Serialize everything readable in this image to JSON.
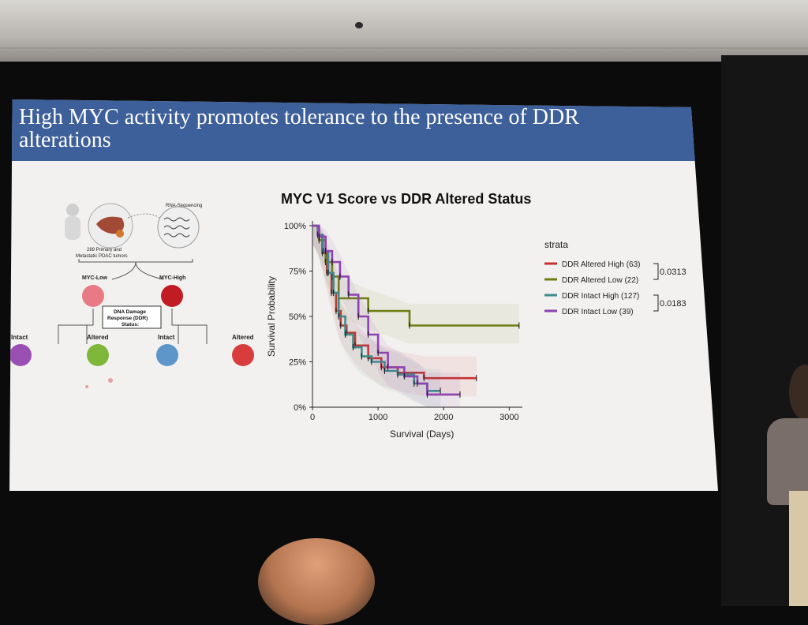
{
  "slide": {
    "title": "High MYC activity promotes tolerance to the presence of DDR alterations",
    "schematic": {
      "rna_label": "RNA-Sequencing",
      "tumor_label_line1": "289 Primary and",
      "tumor_label_line2": "Metastatic PDAC tumors",
      "myc_low": "MYC-Low",
      "myc_high": "MYC-High",
      "ddr_box_line1": "DNA Damage",
      "ddr_box_line2": "Response (DDR)",
      "ddr_box_line3": "Status:",
      "intact_left": "Intact",
      "altered_left": "Altered",
      "intact_right": "Intact",
      "altered_right": "Altered"
    }
  },
  "colors": {
    "title_bar": "#3d5f9a",
    "ddr_altered_high": "#c8302f",
    "ddr_altered_low": "#6f7d14",
    "ddr_intact_high": "#3f8c8c",
    "ddr_intact_low": "#8d43b1"
  },
  "chart_data": {
    "type": "line",
    "title": "MYC V1 Score vs DDR Altered Status",
    "xlabel": "Survival (Days)",
    "ylabel": "Survival Probability",
    "xlim": [
      0,
      3200
    ],
    "ylim": [
      0,
      1
    ],
    "x_ticks": [
      "0",
      "1000",
      "2000",
      "3000"
    ],
    "x_tick_values": [
      0,
      1000,
      2000,
      3000
    ],
    "y_ticks": [
      "0%",
      "25%",
      "50%",
      "75%",
      "100%"
    ],
    "y_tick_values": [
      0,
      0.25,
      0.5,
      0.75,
      1
    ],
    "legend_title": "strata",
    "legend_position": "right",
    "series": [
      {
        "name": "DDR Altered High (63)",
        "color": "#c8302f",
        "x": [
          0,
          80,
          150,
          220,
          290,
          360,
          430,
          520,
          650,
          850,
          1050,
          1300,
          1700,
          2500
        ],
        "y": [
          1.0,
          0.95,
          0.85,
          0.74,
          0.63,
          0.53,
          0.45,
          0.41,
          0.34,
          0.27,
          0.22,
          0.19,
          0.16,
          0.16
        ]
      },
      {
        "name": "DDR Altered Low (22)",
        "color": "#6f7d14",
        "x": [
          0,
          100,
          200,
          300,
          400,
          850,
          1480,
          3150
        ],
        "y": [
          1.0,
          0.92,
          0.8,
          0.72,
          0.6,
          0.53,
          0.45,
          0.45
        ]
      },
      {
        "name": "DDR Intact High (127)",
        "color": "#3f8c8c",
        "x": [
          0,
          80,
          160,
          240,
          320,
          400,
          500,
          620,
          750,
          900,
          1100,
          1300,
          1550,
          1750,
          1950
        ],
        "y": [
          1.0,
          0.95,
          0.86,
          0.74,
          0.63,
          0.5,
          0.4,
          0.33,
          0.28,
          0.25,
          0.2,
          0.18,
          0.13,
          0.09,
          0.09
        ]
      },
      {
        "name": "DDR Intact Low (39)",
        "color": "#8d43b1",
        "x": [
          0,
          100,
          200,
          300,
          420,
          550,
          700,
          850,
          1000,
          1150,
          1400,
          1600,
          1750,
          2250
        ],
        "y": [
          1.0,
          0.94,
          0.86,
          0.8,
          0.72,
          0.62,
          0.5,
          0.4,
          0.3,
          0.22,
          0.17,
          0.13,
          0.07,
          0.07
        ]
      }
    ],
    "comparisons": [
      {
        "label": "0.0313"
      },
      {
        "label": "0.0183"
      }
    ]
  }
}
